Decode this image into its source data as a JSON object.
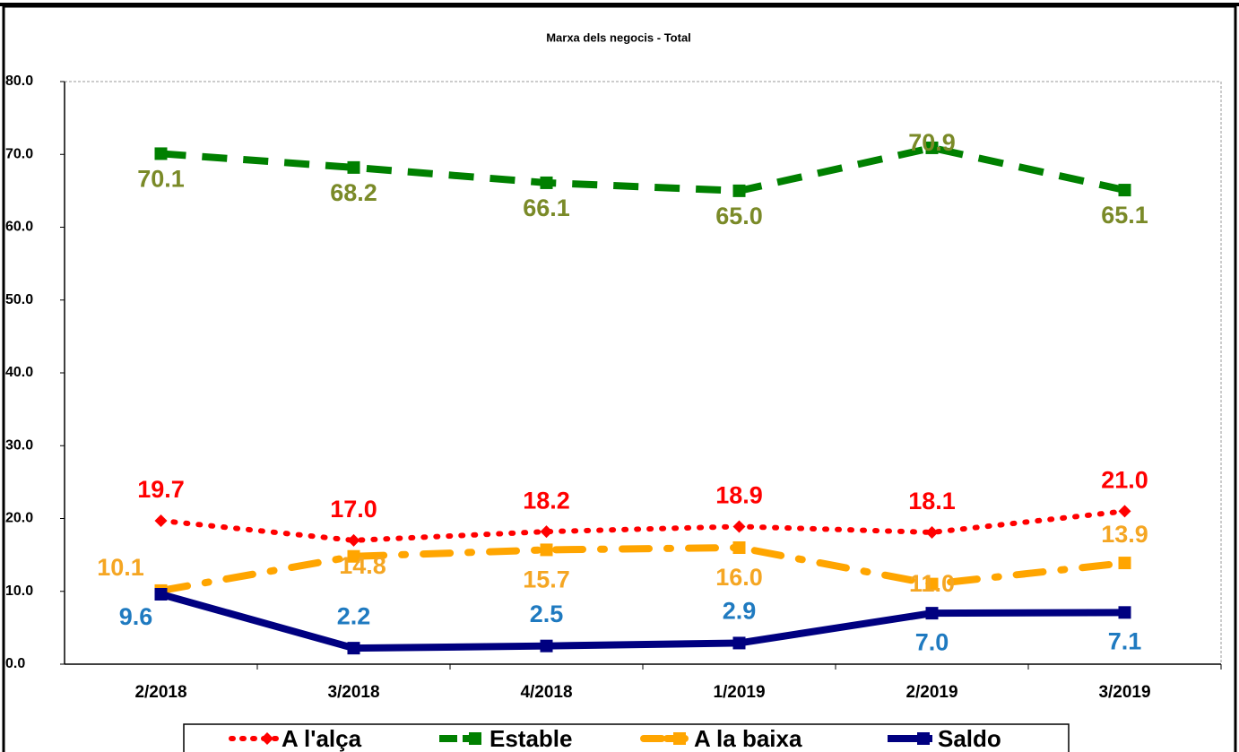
{
  "chart_data": {
    "type": "line",
    "title": "Marxa dels negocis - Total",
    "categories": [
      "2/2018",
      "3/2018",
      "4/2018",
      "1/2019",
      "2/2019",
      "3/2019"
    ],
    "ylim": [
      0,
      80
    ],
    "yticks": [
      {
        "value": 0,
        "label": "0.0"
      },
      {
        "value": 10,
        "label": "10.0"
      },
      {
        "value": 20,
        "label": "20.0"
      },
      {
        "value": 30,
        "label": "30.0"
      },
      {
        "value": 40,
        "label": "40.0"
      },
      {
        "value": 50,
        "label": "50.0"
      },
      {
        "value": 60,
        "label": "60.0"
      },
      {
        "value": 70,
        "label": "70.0"
      },
      {
        "value": 80,
        "label": "80.0"
      }
    ],
    "legend": "bottom",
    "series": [
      {
        "name": "A l'alça",
        "color": "#ff0000",
        "label_color": "#ff0000",
        "dash": "dotted",
        "marker": "diamond",
        "values": [
          19.7,
          17.0,
          18.2,
          18.9,
          18.1,
          21.0
        ],
        "value_labels": [
          "19.7",
          "17.0",
          "18.2",
          "18.9",
          "18.1",
          "21.0"
        ]
      },
      {
        "name": "Estable",
        "color": "#008000",
        "label_color": "#7a8a28",
        "dash": "dashed",
        "marker": "square",
        "values": [
          70.1,
          68.2,
          66.1,
          65.0,
          70.9,
          65.1
        ],
        "value_labels": [
          "70.1",
          "68.2",
          "66.1",
          "65.0",
          "70.9",
          "65.1"
        ]
      },
      {
        "name": "A la baixa",
        "color": "#ffa500",
        "label_color": "#f5a623",
        "dash": "dashdot",
        "marker": "square",
        "values": [
          10.1,
          14.8,
          15.7,
          16.0,
          11.0,
          13.9
        ],
        "value_labels": [
          "10.1",
          "14.8",
          "15.7",
          "16.0",
          "11.0",
          "13.9"
        ]
      },
      {
        "name": "Saldo",
        "color": "#000080",
        "label_color": "#1f7ac0",
        "dash": "solid",
        "marker": "square",
        "values": [
          9.6,
          2.2,
          2.5,
          2.9,
          7.0,
          7.1
        ],
        "value_labels": [
          "9.6",
          "2.2",
          "2.5",
          "2.9",
          "7.0",
          "7.1"
        ]
      }
    ]
  }
}
